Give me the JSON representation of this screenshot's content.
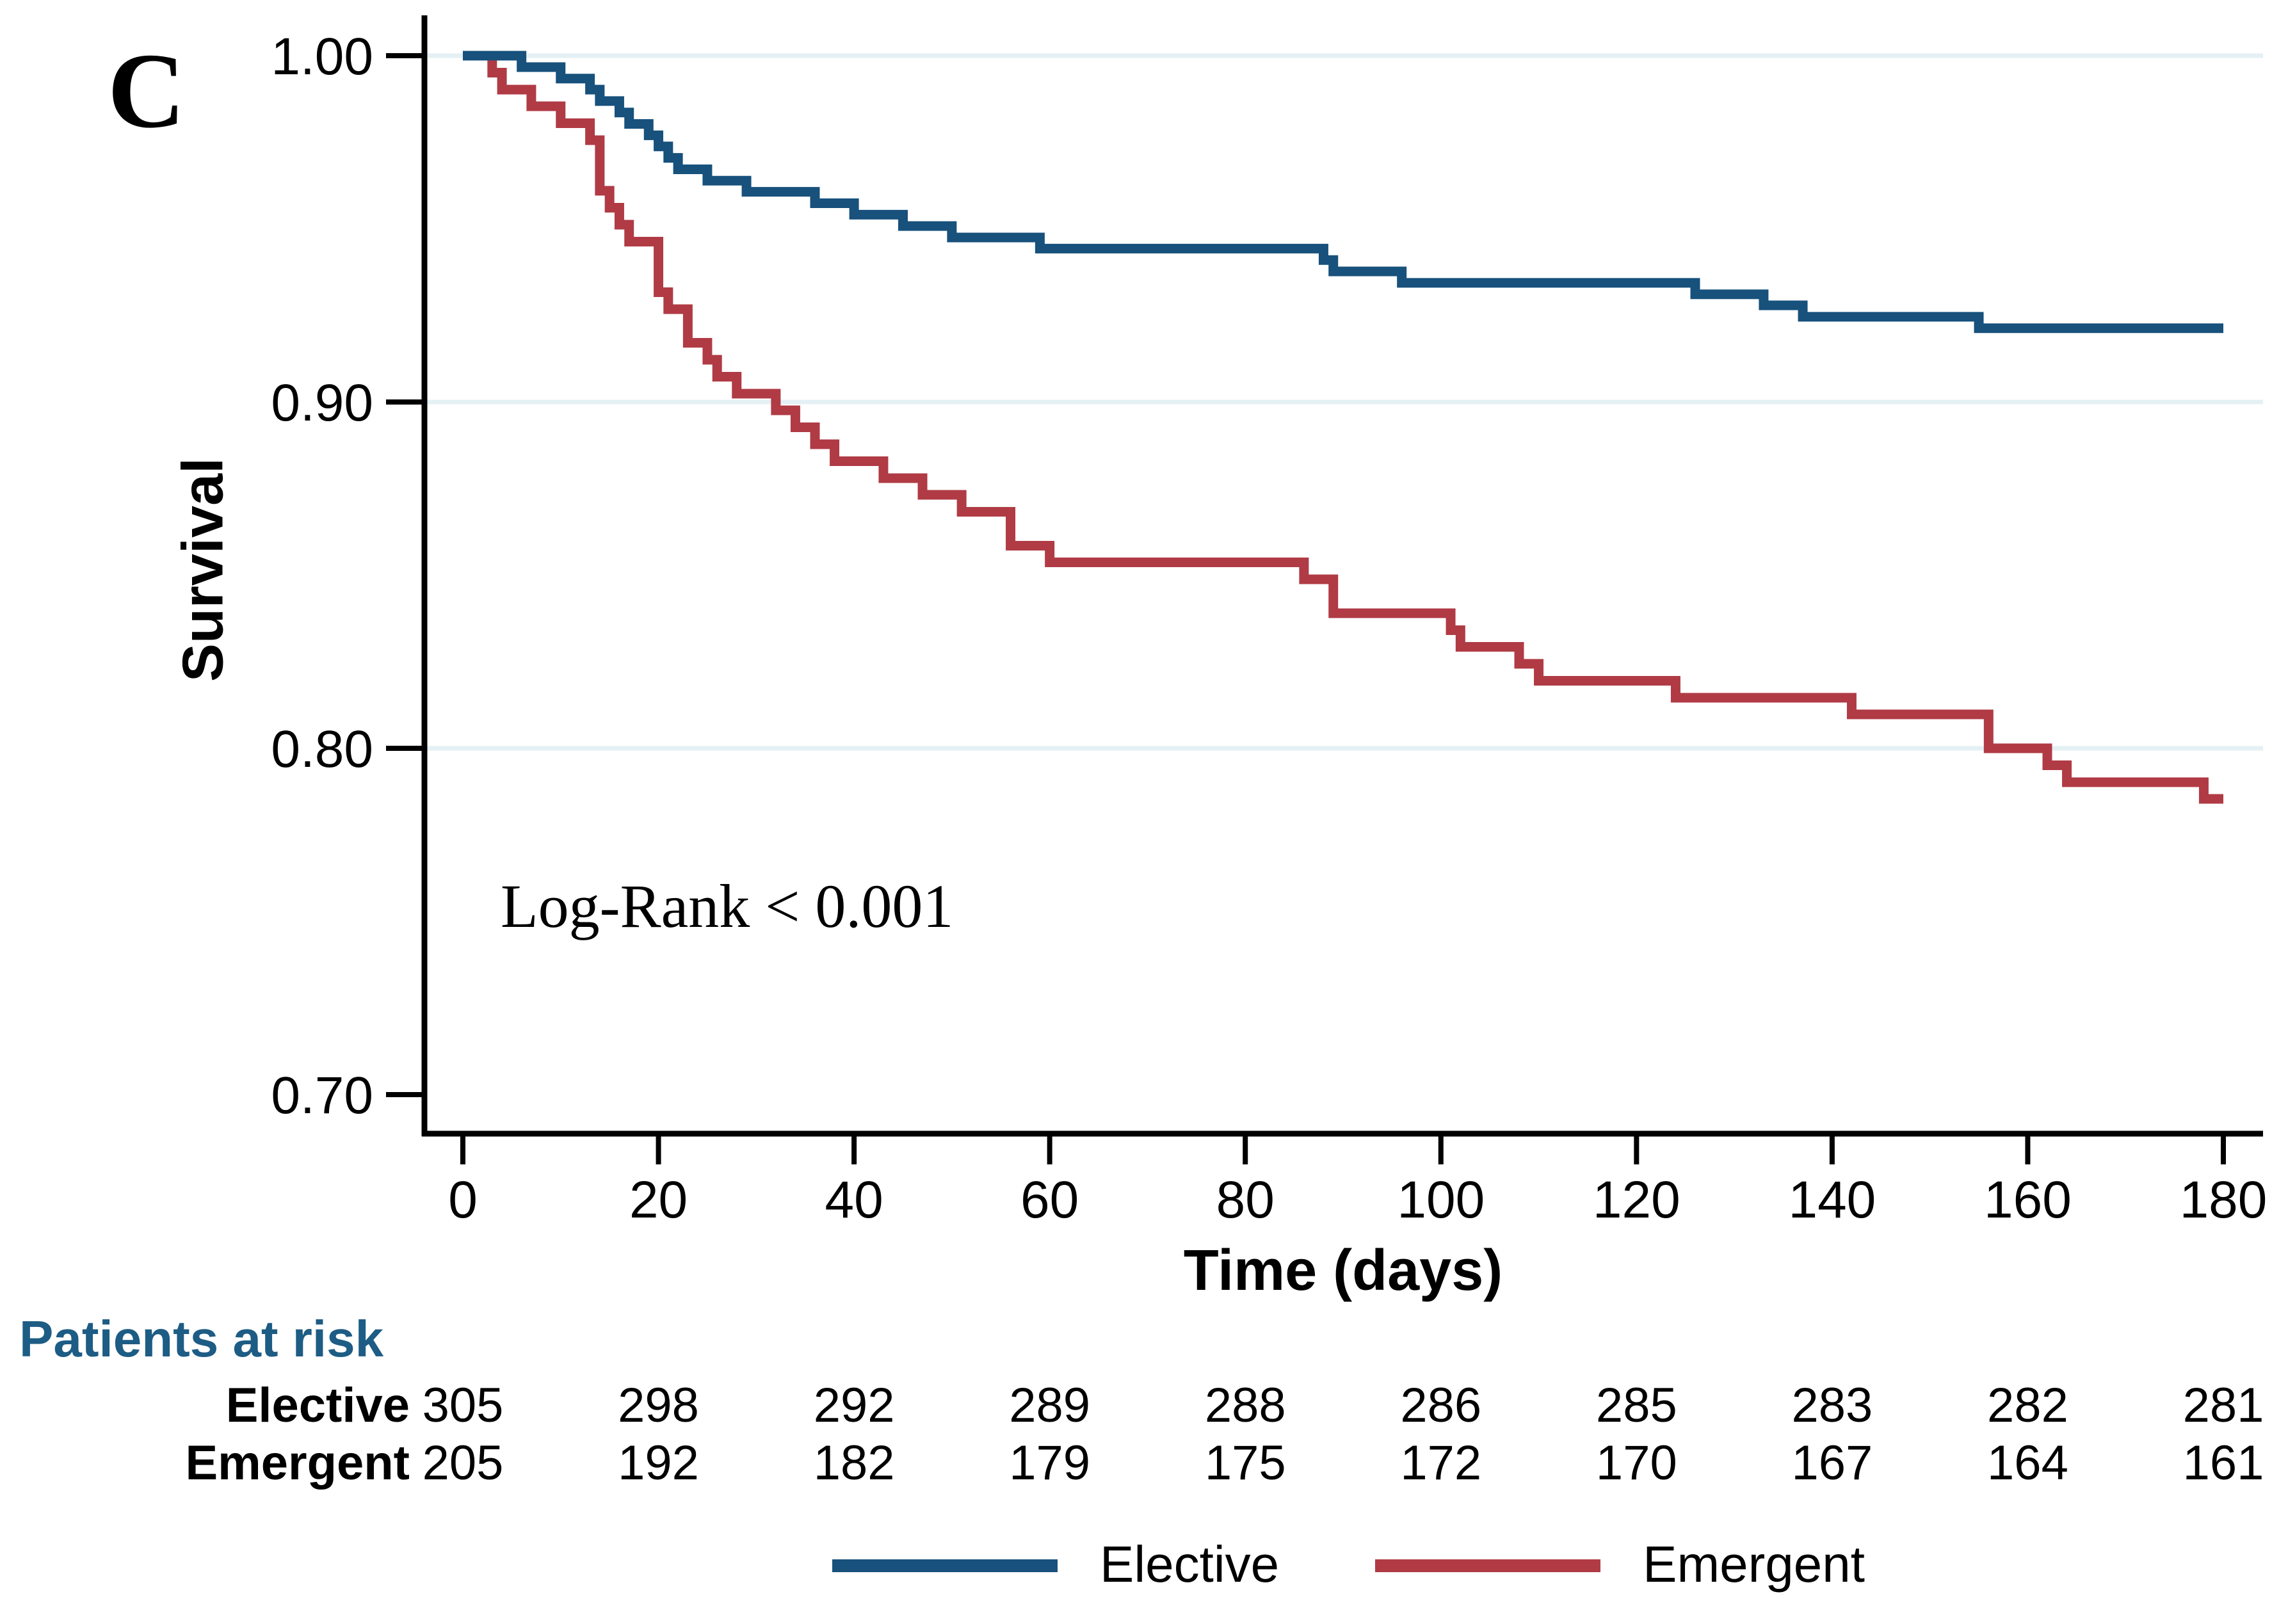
{
  "chart_data": {
    "type": "line",
    "subtype": "kaplan-meier-step",
    "panel_label": "C",
    "xlabel": "Time (days)",
    "ylabel": "Survival",
    "annotation": "Log-Rank < 0.001",
    "xlim": [
      0,
      180
    ],
    "ylim": [
      0.685,
      1.005
    ],
    "xticks": [
      0,
      20,
      40,
      60,
      80,
      100,
      120,
      140,
      160,
      180
    ],
    "yticks": [
      {
        "label": "1.00",
        "value": 1.0
      },
      {
        "label": "0.90",
        "value": 0.9
      },
      {
        "label": "0.80",
        "value": 0.8
      },
      {
        "label": "0.70",
        "value": 0.7
      }
    ],
    "gridlines": [
      1.0,
      0.9,
      0.8
    ],
    "grid_on": true,
    "legend_position": "bottom",
    "colors": {
      "elective": "#17517c",
      "emergent": "#b03b45",
      "gridline": "#e4f0f4",
      "axis": "#000000",
      "risk_title": "#1d5c84"
    },
    "series": [
      {
        "name": "Elective",
        "color": "#17517c",
        "steps": [
          [
            0,
            1.0
          ],
          [
            6,
            0.9967
          ],
          [
            10,
            0.9934
          ],
          [
            13,
            0.9902
          ],
          [
            14,
            0.9869
          ],
          [
            16,
            0.9836
          ],
          [
            17,
            0.9803
          ],
          [
            19,
            0.977
          ],
          [
            20,
            0.9738
          ],
          [
            21,
            0.9705
          ],
          [
            22,
            0.9672
          ],
          [
            25,
            0.9639
          ],
          [
            29,
            0.9607
          ],
          [
            36,
            0.9574
          ],
          [
            40,
            0.9541
          ],
          [
            45,
            0.9508
          ],
          [
            50,
            0.9475
          ],
          [
            59,
            0.9443
          ],
          [
            88,
            0.941
          ],
          [
            89,
            0.9377
          ],
          [
            96,
            0.9344
          ],
          [
            126,
            0.9311
          ],
          [
            133,
            0.9279
          ],
          [
            137,
            0.9246
          ],
          [
            155,
            0.9213
          ],
          [
            180,
            0.9213
          ]
        ]
      },
      {
        "name": "Emergent",
        "color": "#b03b45",
        "steps": [
          [
            0,
            1.0
          ],
          [
            3,
            0.9951
          ],
          [
            4,
            0.9902
          ],
          [
            7,
            0.9854
          ],
          [
            10,
            0.9805
          ],
          [
            13,
            0.9756
          ],
          [
            14,
            0.961
          ],
          [
            15,
            0.9561
          ],
          [
            16,
            0.9512
          ],
          [
            17,
            0.9463
          ],
          [
            20,
            0.9317
          ],
          [
            21,
            0.9268
          ],
          [
            23,
            0.9171
          ],
          [
            25,
            0.9122
          ],
          [
            26,
            0.9073
          ],
          [
            28,
            0.9024
          ],
          [
            32,
            0.8976
          ],
          [
            34,
            0.8927
          ],
          [
            36,
            0.8878
          ],
          [
            38,
            0.8829
          ],
          [
            43,
            0.878
          ],
          [
            47,
            0.8732
          ],
          [
            51,
            0.8683
          ],
          [
            56,
            0.8585
          ],
          [
            60,
            0.8537
          ],
          [
            86,
            0.8488
          ],
          [
            89,
            0.839
          ],
          [
            101,
            0.8341
          ],
          [
            102,
            0.8293
          ],
          [
            108,
            0.8244
          ],
          [
            110,
            0.8195
          ],
          [
            124,
            0.8146
          ],
          [
            142,
            0.8098
          ],
          [
            156,
            0.8
          ],
          [
            162,
            0.7951
          ],
          [
            164,
            0.7902
          ],
          [
            178,
            0.7854
          ],
          [
            180,
            0.7854
          ]
        ]
      }
    ],
    "risk_table": {
      "title": "Patients at risk",
      "days": [
        0,
        20,
        40,
        60,
        80,
        100,
        120,
        140,
        160,
        180
      ],
      "rows": [
        {
          "label": "Elective",
          "counts": [
            305,
            298,
            292,
            289,
            288,
            286,
            285,
            283,
            282,
            281
          ]
        },
        {
          "label": "Emergent",
          "counts": [
            205,
            192,
            182,
            179,
            175,
            172,
            170,
            167,
            164,
            161
          ]
        }
      ]
    },
    "legend": [
      {
        "label": "Elective",
        "color": "#17517c"
      },
      {
        "label": "Emergent",
        "color": "#b03b45"
      }
    ]
  }
}
